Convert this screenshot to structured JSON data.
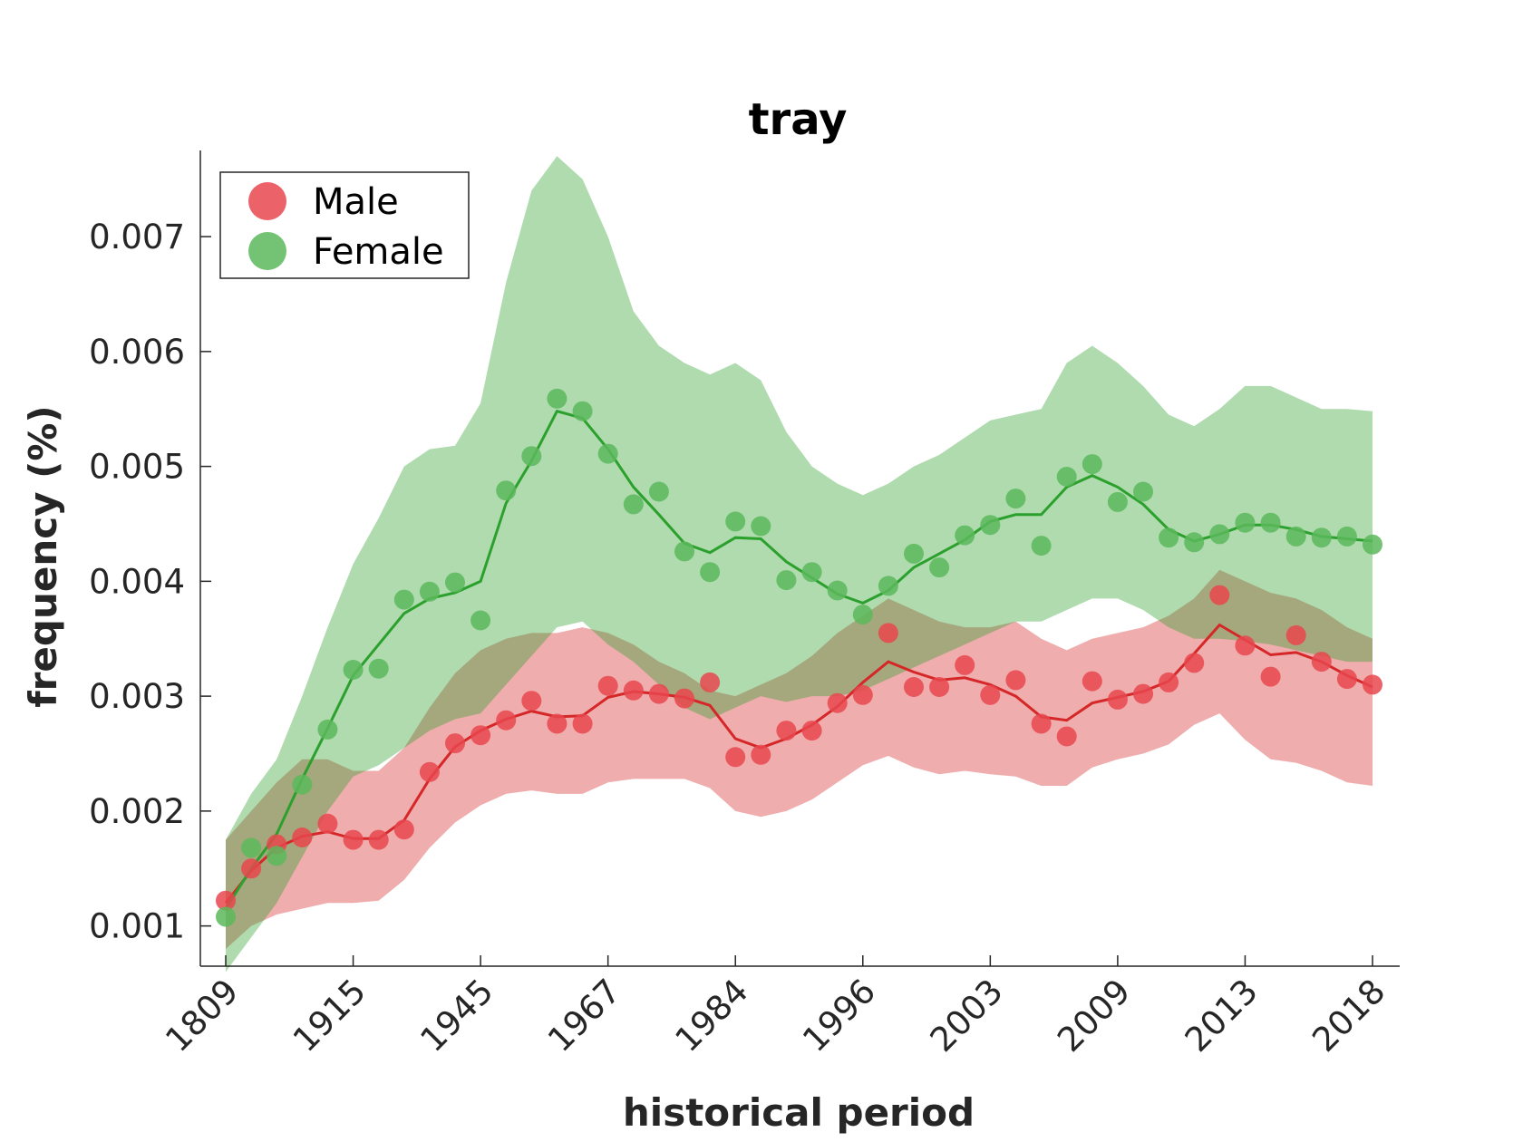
{
  "chart_data": {
    "type": "line",
    "title": "tray",
    "xlabel": "historical period",
    "ylabel": "frequency (%)",
    "x_tick_labels": [
      "1809",
      "1915",
      "1945",
      "1967",
      "1984",
      "1996",
      "2003",
      "2009",
      "2013",
      "2018"
    ],
    "y_ticks": [
      0.001,
      0.002,
      0.003,
      0.004,
      0.005,
      0.006,
      0.007
    ],
    "y_tick_labels": [
      "0.001",
      "0.002",
      "0.003",
      "0.004",
      "0.005",
      "0.006",
      "0.007"
    ],
    "ylim": [
      0.00065,
      0.00775
    ],
    "x_points": 46,
    "legend_position": "top-left",
    "grid": false,
    "series": [
      {
        "name": "Male",
        "color": "#d62728",
        "marker_color": "#e8474d",
        "points": [
          0.00122,
          0.0015,
          0.00171,
          0.00177,
          0.00189,
          0.00175,
          0.00175,
          0.00184,
          0.00234,
          0.00259,
          0.00266,
          0.00279,
          0.00296,
          0.00276,
          0.00276,
          0.00309,
          0.00305,
          0.00302,
          0.00298,
          0.00312,
          0.00247,
          0.00249,
          0.0027,
          0.0027,
          0.00294,
          0.00301,
          0.00355,
          0.00308,
          0.00308,
          0.00327,
          0.00301,
          0.00314,
          0.00276,
          0.00265,
          0.00313,
          0.00297,
          0.00302,
          0.00312,
          0.00329,
          0.00388,
          0.00344,
          0.00317,
          0.00353,
          0.0033,
          0.00315,
          0.0031
        ],
        "line": [
          0.0012,
          0.00148,
          0.00168,
          0.00178,
          0.00182,
          0.00176,
          0.00176,
          0.00192,
          0.00228,
          0.00256,
          0.0027,
          0.0028,
          0.00287,
          0.00282,
          0.00283,
          0.00299,
          0.00304,
          0.00302,
          0.00299,
          0.00292,
          0.00263,
          0.00255,
          0.00263,
          0.00275,
          0.00291,
          0.00312,
          0.0033,
          0.00321,
          0.00314,
          0.00316,
          0.0031,
          0.003,
          0.00282,
          0.00279,
          0.00294,
          0.00299,
          0.00304,
          0.00313,
          0.00337,
          0.00362,
          0.00349,
          0.00336,
          0.00338,
          0.0033,
          0.00318,
          0.00308
        ],
        "upper": [
          0.00175,
          0.002,
          0.00225,
          0.00245,
          0.00245,
          0.00235,
          0.00235,
          0.00255,
          0.0029,
          0.0032,
          0.0034,
          0.0035,
          0.00355,
          0.00355,
          0.0036,
          0.00355,
          0.00345,
          0.0033,
          0.0032,
          0.00305,
          0.003,
          0.0031,
          0.0032,
          0.00335,
          0.00355,
          0.0037,
          0.00385,
          0.00375,
          0.00365,
          0.0036,
          0.0036,
          0.00365,
          0.0035,
          0.0034,
          0.0035,
          0.00355,
          0.0036,
          0.0037,
          0.00385,
          0.0041,
          0.004,
          0.0039,
          0.00385,
          0.00375,
          0.0036,
          0.0035
        ],
        "lower": [
          0.0008,
          0.001,
          0.0011,
          0.00115,
          0.0012,
          0.0012,
          0.00122,
          0.0014,
          0.00168,
          0.0019,
          0.00205,
          0.00215,
          0.00218,
          0.00215,
          0.00215,
          0.00225,
          0.00228,
          0.00228,
          0.00228,
          0.0022,
          0.002,
          0.00195,
          0.002,
          0.0021,
          0.00225,
          0.0024,
          0.00248,
          0.00238,
          0.00232,
          0.00235,
          0.00232,
          0.0023,
          0.00222,
          0.00222,
          0.00238,
          0.00245,
          0.0025,
          0.00258,
          0.00275,
          0.00285,
          0.00262,
          0.00245,
          0.00242,
          0.00235,
          0.00225,
          0.00222
        ]
      },
      {
        "name": "Female",
        "color": "#2ca02c",
        "marker_color": "#5cb85c",
        "points": [
          0.00108,
          0.00168,
          0.00161,
          0.00223,
          0.00271,
          0.00323,
          0.00324,
          0.00384,
          0.00391,
          0.00399,
          0.00366,
          0.00479,
          0.00509,
          0.00559,
          0.00548,
          0.00511,
          0.00467,
          0.00478,
          0.00426,
          0.00408,
          0.00452,
          0.00448,
          0.00401,
          0.00408,
          0.00392,
          0.00371,
          0.00396,
          0.00424,
          0.00412,
          0.0044,
          0.00449,
          0.00472,
          0.00431,
          0.00491,
          0.00502,
          0.00469,
          0.00478,
          0.00438,
          0.00434,
          0.00441,
          0.00451,
          0.00451,
          0.00439,
          0.00438,
          0.00439,
          0.00432
        ],
        "line": [
          0.00115,
          0.0015,
          0.0018,
          0.00228,
          0.00272,
          0.00318,
          0.00345,
          0.00372,
          0.00385,
          0.0039,
          0.004,
          0.00468,
          0.00505,
          0.00548,
          0.00542,
          0.00515,
          0.00482,
          0.00458,
          0.00433,
          0.00425,
          0.00438,
          0.00437,
          0.00417,
          0.00403,
          0.00389,
          0.00381,
          0.00392,
          0.00412,
          0.00424,
          0.00436,
          0.00452,
          0.00458,
          0.00458,
          0.00482,
          0.00492,
          0.00482,
          0.00467,
          0.00445,
          0.00435,
          0.00441,
          0.00449,
          0.00449,
          0.00445,
          0.00439,
          0.00437,
          0.00435
        ],
        "upper": [
          0.00175,
          0.00215,
          0.00245,
          0.003,
          0.0036,
          0.00415,
          0.00455,
          0.005,
          0.00515,
          0.00518,
          0.00555,
          0.0066,
          0.0074,
          0.0077,
          0.0075,
          0.007,
          0.00635,
          0.00605,
          0.0059,
          0.0058,
          0.0059,
          0.00575,
          0.0053,
          0.005,
          0.00485,
          0.00475,
          0.00485,
          0.005,
          0.0051,
          0.00525,
          0.0054,
          0.00545,
          0.0055,
          0.0059,
          0.00605,
          0.0059,
          0.0057,
          0.00545,
          0.00535,
          0.0055,
          0.0057,
          0.0057,
          0.0056,
          0.0055,
          0.0055,
          0.00548
        ],
        "lower": [
          0.0006,
          0.0009,
          0.0012,
          0.0016,
          0.002,
          0.0023,
          0.0024,
          0.00255,
          0.0027,
          0.0028,
          0.00285,
          0.0031,
          0.00335,
          0.0036,
          0.00365,
          0.00345,
          0.0033,
          0.0031,
          0.0029,
          0.0028,
          0.0029,
          0.003,
          0.00295,
          0.003,
          0.003,
          0.00305,
          0.00315,
          0.00325,
          0.00335,
          0.00345,
          0.00355,
          0.00365,
          0.00365,
          0.00375,
          0.00385,
          0.00385,
          0.00375,
          0.0036,
          0.0035,
          0.0035,
          0.00348,
          0.00345,
          0.0034,
          0.00335,
          0.0033,
          0.0033
        ]
      }
    ]
  }
}
